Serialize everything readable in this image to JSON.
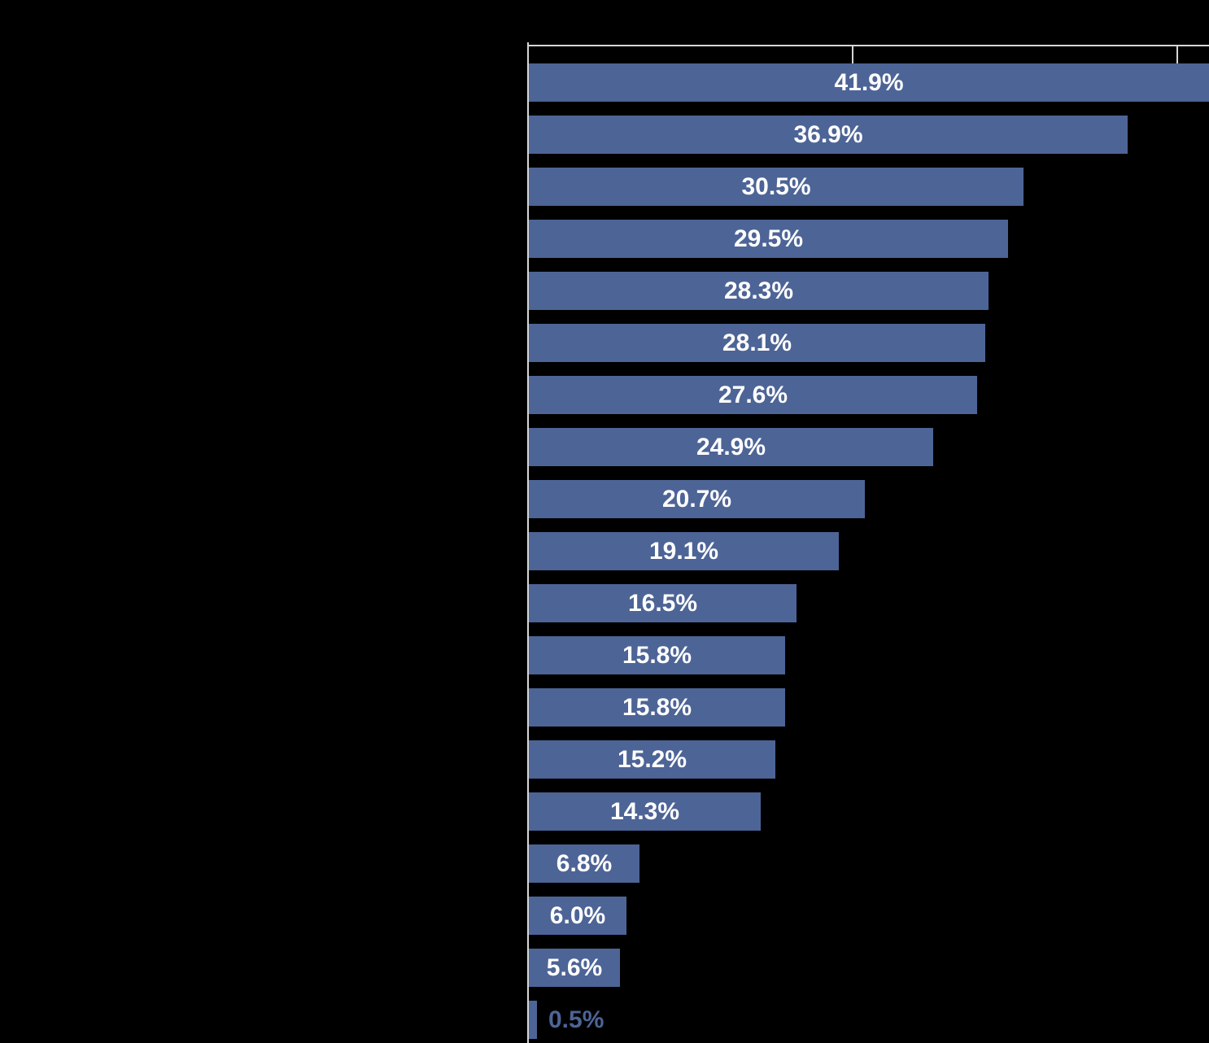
{
  "page": {
    "background_color": "#000000"
  },
  "style": {
    "bar_color": "#4d6496",
    "axis_color": "#d6d6d6",
    "data_label_color": "#ffffff",
    "outside_data_label_color": "#4d6496"
  },
  "chart_data": {
    "type": "bar",
    "orientation": "horizontal",
    "title": "",
    "xlabel": "",
    "ylabel": "",
    "series": [
      {
        "name": "percent",
        "values": [
          41.9,
          36.9,
          30.5,
          29.5,
          28.3,
          28.1,
          27.6,
          24.9,
          20.7,
          19.1,
          16.5,
          15.8,
          15.8,
          15.2,
          14.3,
          6.8,
          6.0,
          5.6,
          0.5
        ]
      }
    ],
    "data_labels": [
      "41.9%",
      "36.9%",
      "30.5%",
      "29.5%",
      "28.3%",
      "28.1%",
      "27.6%",
      "24.9%",
      "20.7%",
      "19.1%",
      "16.5%",
      "15.8%",
      "15.8%",
      "15.2%",
      "14.3%",
      "6.8%",
      "6.0%",
      "5.6%",
      "0.5%"
    ],
    "xlim": [
      0,
      42
    ],
    "x_ticks_percent": [
      0,
      20,
      40
    ],
    "x_tick_labels_visible": false,
    "category_labels_visible": false,
    "grid": false,
    "legend": false,
    "data_label_position": "inside-center",
    "outside_label_indices": [
      18
    ]
  }
}
